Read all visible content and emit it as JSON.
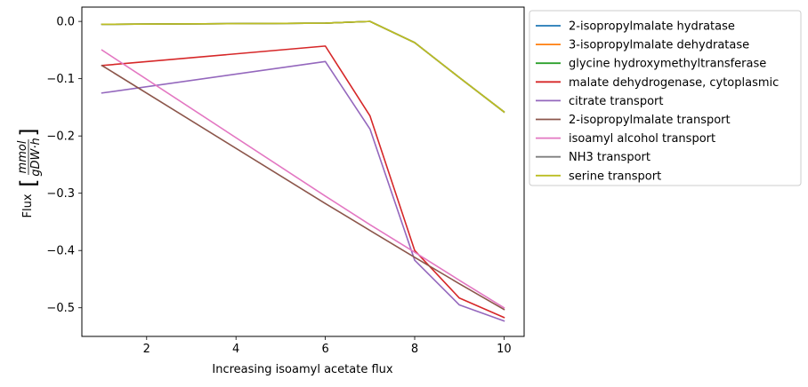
{
  "chart_data": {
    "type": "line",
    "title": "",
    "xlabel": "Increasing isoamyl acetate flux",
    "ylabel_prefix": "Flux",
    "ylabel_unit_numerator": "mmol",
    "ylabel_unit_denominator": "gDW·h",
    "xlim": [
      0.55,
      10.45
    ],
    "ylim": [
      -0.55,
      0.025
    ],
    "x_ticks": [
      2,
      4,
      6,
      8,
      10
    ],
    "x_tick_labels": [
      "2",
      "4",
      "6",
      "8",
      "10"
    ],
    "y_ticks": [
      0.0,
      -0.1,
      -0.2,
      -0.3,
      -0.4,
      -0.5
    ],
    "y_tick_labels": [
      "0.0",
      "−0.1",
      "−0.2",
      "−0.3",
      "−0.4",
      "−0.5"
    ],
    "grid": false,
    "legend_position": "outside-right-top",
    "x": [
      1,
      6,
      7,
      8,
      9,
      10
    ],
    "series": [
      {
        "name": "2-isopropylmalate hydratase",
        "color": "#1f77b4",
        "values": [
          -0.005,
          -0.003,
          0.0,
          -0.037,
          -0.098,
          -0.158
        ]
      },
      {
        "name": "3-isopropylmalate dehydratase",
        "color": "#ff7f0e",
        "values": [
          -0.005,
          -0.003,
          0.0,
          -0.037,
          -0.098,
          -0.158
        ]
      },
      {
        "name": "glycine hydroxymethyltransferase",
        "color": "#2ca02c",
        "values": [
          -0.005,
          -0.003,
          0.0,
          -0.037,
          -0.098,
          -0.158
        ]
      },
      {
        "name": "malate dehydrogenase, cytoplasmic",
        "color": "#d62728",
        "values": [
          -0.077,
          -0.043,
          -0.165,
          -0.4,
          -0.483,
          -0.517
        ]
      },
      {
        "name": "citrate transport",
        "color": "#9467bd",
        "values": [
          -0.125,
          -0.07,
          -0.188,
          -0.417,
          -0.495,
          -0.523
        ]
      },
      {
        "name": "2-isopropylmalate transport",
        "color": "#8c564b",
        "values": [
          -0.077,
          -0.318,
          -0.365,
          -0.412,
          -0.458,
          -0.503
        ]
      },
      {
        "name": "isoamyl alcohol transport",
        "color": "#e377c2",
        "values": [
          -0.05,
          -0.305,
          -0.355,
          -0.403,
          -0.452,
          -0.5
        ]
      },
      {
        "name": "NH3 transport",
        "color": "#7f7f7f",
        "values": [
          -0.005,
          -0.003,
          0.0,
          -0.037,
          -0.098,
          -0.158
        ]
      },
      {
        "name": "serine transport",
        "color": "#bcbd22",
        "values": [
          -0.005,
          -0.003,
          0.0,
          -0.037,
          -0.098,
          -0.158
        ]
      }
    ]
  }
}
